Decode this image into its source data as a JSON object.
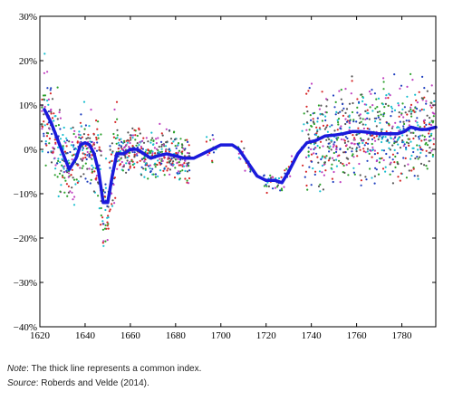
{
  "chart_data": {
    "type": "scatter",
    "title": "",
    "xlabel": "",
    "ylabel": "",
    "xlim": [
      1620,
      1795
    ],
    "ylim": [
      -40,
      30
    ],
    "x_ticks": [
      1620,
      1640,
      1660,
      1680,
      1700,
      1720,
      1740,
      1760,
      1780
    ],
    "x_tick_labels": [
      "1620",
      "1640",
      "1660",
      "1680",
      "1700",
      "1720",
      "1740",
      "1760",
      "1780"
    ],
    "y_ticks": [
      -40,
      -30,
      -20,
      -10,
      0,
      10,
      20,
      30
    ],
    "y_tick_labels": [
      "−40%",
      "−30%",
      "−20%",
      "−10%",
      "0%",
      "10%",
      "20%",
      "30%"
    ],
    "grid": false,
    "legend": "none",
    "marker_colors": [
      "#d62728",
      "#2ca02c",
      "#1f3fbf",
      "#bf3fbf",
      "#17becf",
      "#555555"
    ],
    "line_color": "#1a1adb",
    "common_index": {
      "x": [
        1622,
        1625,
        1628,
        1631,
        1633,
        1636,
        1638,
        1640,
        1642,
        1644,
        1646,
        1648,
        1650,
        1652,
        1654,
        1657,
        1660,
        1663,
        1666,
        1669,
        1672,
        1676,
        1680,
        1684,
        1688,
        1692,
        1696,
        1700,
        1705,
        1708,
        1712,
        1716,
        1720,
        1724,
        1727,
        1730,
        1734,
        1738,
        1742,
        1746,
        1750,
        1754,
        1758,
        1762,
        1766,
        1770,
        1774,
        1778,
        1781,
        1784,
        1788,
        1791,
        1795
      ],
      "y": [
        9,
        6,
        2,
        -2,
        -4.5,
        -2,
        1,
        1.5,
        1,
        -1,
        -5,
        -12,
        -12,
        -6,
        -1,
        -1,
        0,
        0,
        -1,
        -2,
        -1.5,
        -1,
        -1.5,
        -2,
        -2,
        -1,
        0,
        1,
        1,
        0,
        -3,
        -6,
        -7,
        -7,
        -7.5,
        -5,
        -1,
        1.5,
        2,
        3,
        3.2,
        3.5,
        4,
        4,
        3.8,
        3.5,
        3.5,
        3.5,
        4,
        5,
        4.5,
        4.5,
        5
      ]
    }
  },
  "notes": {
    "note_label": "Note",
    "note_text": ": The thick line represents a common index.",
    "source_label": "Source",
    "source_text": ": Roberds and Velde (2014)."
  }
}
